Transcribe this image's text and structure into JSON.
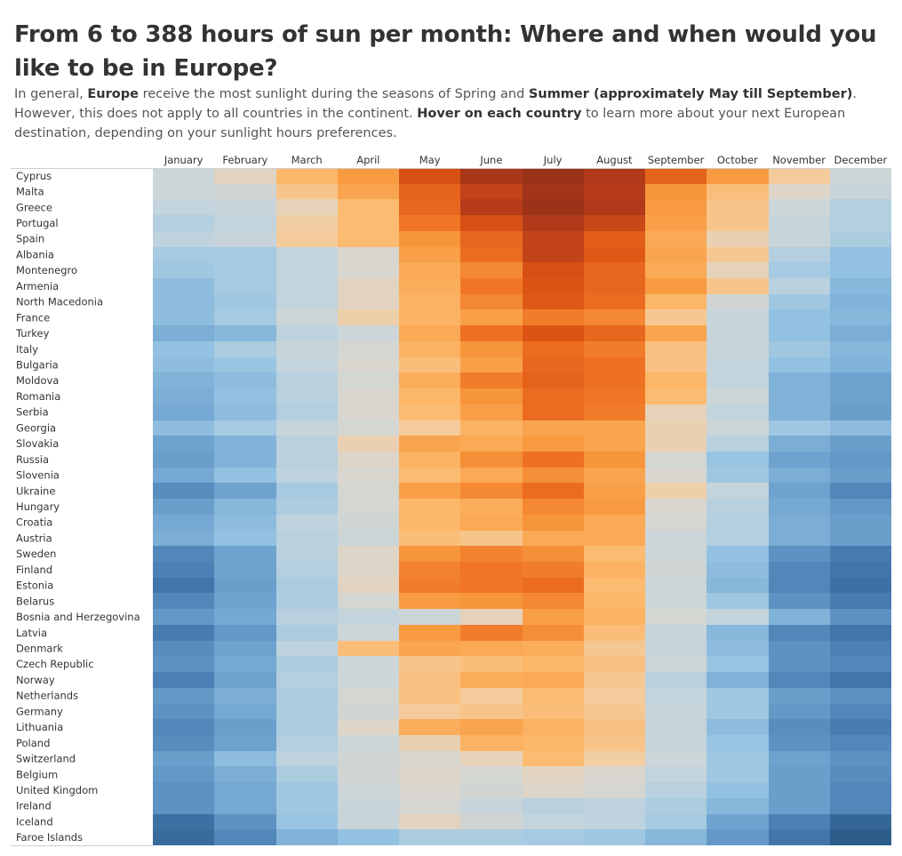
{
  "header": {
    "title": "From 6 to 388 hours of sun per month: Where and when would you like to be in Europe?",
    "subtitle": [
      {
        "text": "In general, ",
        "bold": false
      },
      {
        "text": "Europe",
        "bold": true
      },
      {
        "text": " receive the most sunlight during the seasons of Spring and ",
        "bold": false
      },
      {
        "text": "Summer (approximately May till September)",
        "bold": true
      },
      {
        "text": ". However, this does not apply to all countries in the continent. ",
        "bold": false
      },
      {
        "text": "Hover on each country",
        "bold": true
      },
      {
        "text": " to learn more about your next European destination, depending on your sunlight hours preferences.",
        "bold": false
      }
    ]
  },
  "colors": {
    "scale": [
      "#2b5c8a",
      "#4a7fb4",
      "#6fa3cf",
      "#95c3e2",
      "#bdd3df",
      "#d9d6cf",
      "#f3cda0",
      "#fcb86b",
      "#f89a3f",
      "#ef7324",
      "#dd5514",
      "#b43a1a",
      "#9a3218"
    ],
    "scale_domain": [
      6,
      388
    ],
    "row_line": "#cfcfcf"
  },
  "chart_data": {
    "type": "heatmap",
    "value_domain": [
      6,
      388
    ],
    "months": [
      "January",
      "February",
      "March",
      "April",
      "May",
      "June",
      "July",
      "August",
      "September",
      "October",
      "November",
      "December"
    ],
    "countries": [
      "Cyprus",
      "Malta",
      "Greece",
      "Portugal",
      "Spain",
      "Albania",
      "Montenegro",
      "Armenia",
      "North Macedonia",
      "France",
      "Turkey",
      "Italy",
      "Bulgaria",
      "Moldova",
      "Romania",
      "Serbia",
      "Georgia",
      "Slovakia",
      "Russia",
      "Slovenia",
      "Ukraine",
      "Hungary",
      "Croatia",
      "Austria",
      "Sweden",
      "Finland",
      "Estonia",
      "Belarus",
      "Bosnia and Herzegovina",
      "Latvia",
      "Denmark",
      "Czech Republic",
      "Norway",
      "Netherlands",
      "Germany",
      "Lithuania",
      "Poland",
      "Switzerland",
      "Belgium",
      "United Kingdom",
      "Ireland",
      "Iceland",
      "Faroe Islands"
    ],
    "values": [
      [
        150,
        175,
        230,
        260,
        330,
        370,
        388,
        360,
        310,
        260,
        200,
        150
      ],
      [
        150,
        155,
        210,
        250,
        310,
        345,
        380,
        355,
        265,
        220,
        170,
        145
      ],
      [
        140,
        145,
        180,
        225,
        305,
        355,
        385,
        360,
        260,
        210,
        150,
        125
      ],
      [
        125,
        140,
        195,
        225,
        290,
        330,
        360,
        340,
        255,
        210,
        145,
        125
      ],
      [
        135,
        145,
        200,
        225,
        265,
        305,
        345,
        315,
        245,
        185,
        145,
        120
      ],
      [
        115,
        115,
        140,
        165,
        255,
        300,
        345,
        320,
        250,
        205,
        125,
        100
      ],
      [
        110,
        115,
        140,
        165,
        245,
        275,
        330,
        305,
        245,
        180,
        115,
        100
      ],
      [
        95,
        115,
        140,
        175,
        240,
        290,
        325,
        305,
        260,
        210,
        130,
        90
      ],
      [
        95,
        110,
        140,
        175,
        235,
        275,
        320,
        300,
        230,
        155,
        110,
        85
      ],
      [
        95,
        115,
        150,
        190,
        235,
        255,
        285,
        275,
        205,
        145,
        100,
        90
      ],
      [
        80,
        90,
        135,
        150,
        245,
        295,
        325,
        305,
        250,
        145,
        100,
        80
      ],
      [
        100,
        120,
        145,
        160,
        235,
        265,
        300,
        285,
        215,
        145,
        110,
        90
      ],
      [
        95,
        105,
        140,
        165,
        220,
        255,
        305,
        295,
        215,
        140,
        100,
        85
      ],
      [
        85,
        95,
        130,
        160,
        240,
        285,
        310,
        295,
        230,
        140,
        85,
        70
      ],
      [
        80,
        100,
        130,
        165,
        230,
        265,
        300,
        290,
        225,
        150,
        85,
        70
      ],
      [
        75,
        95,
        125,
        165,
        225,
        255,
        300,
        285,
        180,
        140,
        85,
        65
      ],
      [
        95,
        115,
        145,
        160,
        200,
        235,
        250,
        250,
        185,
        150,
        110,
        95
      ],
      [
        70,
        85,
        130,
        185,
        250,
        245,
        260,
        250,
        185,
        130,
        80,
        65
      ],
      [
        65,
        85,
        130,
        170,
        235,
        270,
        295,
        265,
        160,
        105,
        70,
        60
      ],
      [
        75,
        100,
        135,
        165,
        225,
        245,
        270,
        250,
        165,
        110,
        80,
        65
      ],
      [
        50,
        70,
        115,
        160,
        255,
        275,
        300,
        255,
        190,
        140,
        70,
        45
      ],
      [
        65,
        90,
        120,
        160,
        230,
        240,
        275,
        260,
        165,
        130,
        75,
        60
      ],
      [
        75,
        95,
        135,
        155,
        230,
        245,
        265,
        245,
        160,
        125,
        80,
        65
      ],
      [
        80,
        100,
        130,
        150,
        220,
        210,
        245,
        245,
        150,
        125,
        80,
        65
      ],
      [
        45,
        70,
        130,
        170,
        265,
        280,
        270,
        225,
        150,
        100,
        55,
        35
      ],
      [
        40,
        70,
        125,
        170,
        280,
        290,
        285,
        235,
        155,
        95,
        45,
        30
      ],
      [
        30,
        65,
        120,
        175,
        285,
        290,
        300,
        225,
        150,
        90,
        45,
        25
      ],
      [
        45,
        70,
        120,
        160,
        260,
        265,
        275,
        230,
        150,
        110,
        55,
        35
      ],
      [
        60,
        75,
        130,
        140,
        150,
        180,
        255,
        235,
        160,
        140,
        85,
        55
      ],
      [
        35,
        60,
        120,
        150,
        260,
        285,
        270,
        220,
        145,
        90,
        45,
        30
      ],
      [
        50,
        70,
        135,
        220,
        250,
        245,
        240,
        205,
        145,
        95,
        55,
        40
      ],
      [
        55,
        75,
        120,
        150,
        210,
        220,
        230,
        215,
        150,
        105,
        55,
        45
      ],
      [
        40,
        70,
        125,
        150,
        215,
        240,
        245,
        205,
        130,
        85,
        45,
        30
      ],
      [
        60,
        80,
        120,
        160,
        215,
        200,
        225,
        200,
        140,
        110,
        65,
        55
      ],
      [
        55,
        75,
        120,
        155,
        200,
        210,
        220,
        205,
        145,
        110,
        60,
        45
      ],
      [
        45,
        65,
        120,
        170,
        240,
        250,
        235,
        215,
        145,
        95,
        50,
        35
      ],
      [
        50,
        70,
        125,
        150,
        185,
        235,
        230,
        210,
        145,
        105,
        55,
        45
      ],
      [
        65,
        95,
        135,
        155,
        165,
        180,
        225,
        195,
        150,
        110,
        70,
        55
      ],
      [
        60,
        80,
        120,
        155,
        170,
        160,
        175,
        165,
        140,
        110,
        65,
        50
      ],
      [
        55,
        75,
        110,
        150,
        165,
        155,
        170,
        160,
        130,
        100,
        65,
        45
      ],
      [
        55,
        75,
        110,
        145,
        160,
        145,
        130,
        135,
        120,
        90,
        65,
        45
      ],
      [
        25,
        55,
        105,
        145,
        175,
        155,
        140,
        135,
        115,
        70,
        40,
        15
      ],
      [
        20,
        45,
        85,
        100,
        120,
        120,
        115,
        110,
        90,
        60,
        30,
        6
      ]
    ]
  }
}
